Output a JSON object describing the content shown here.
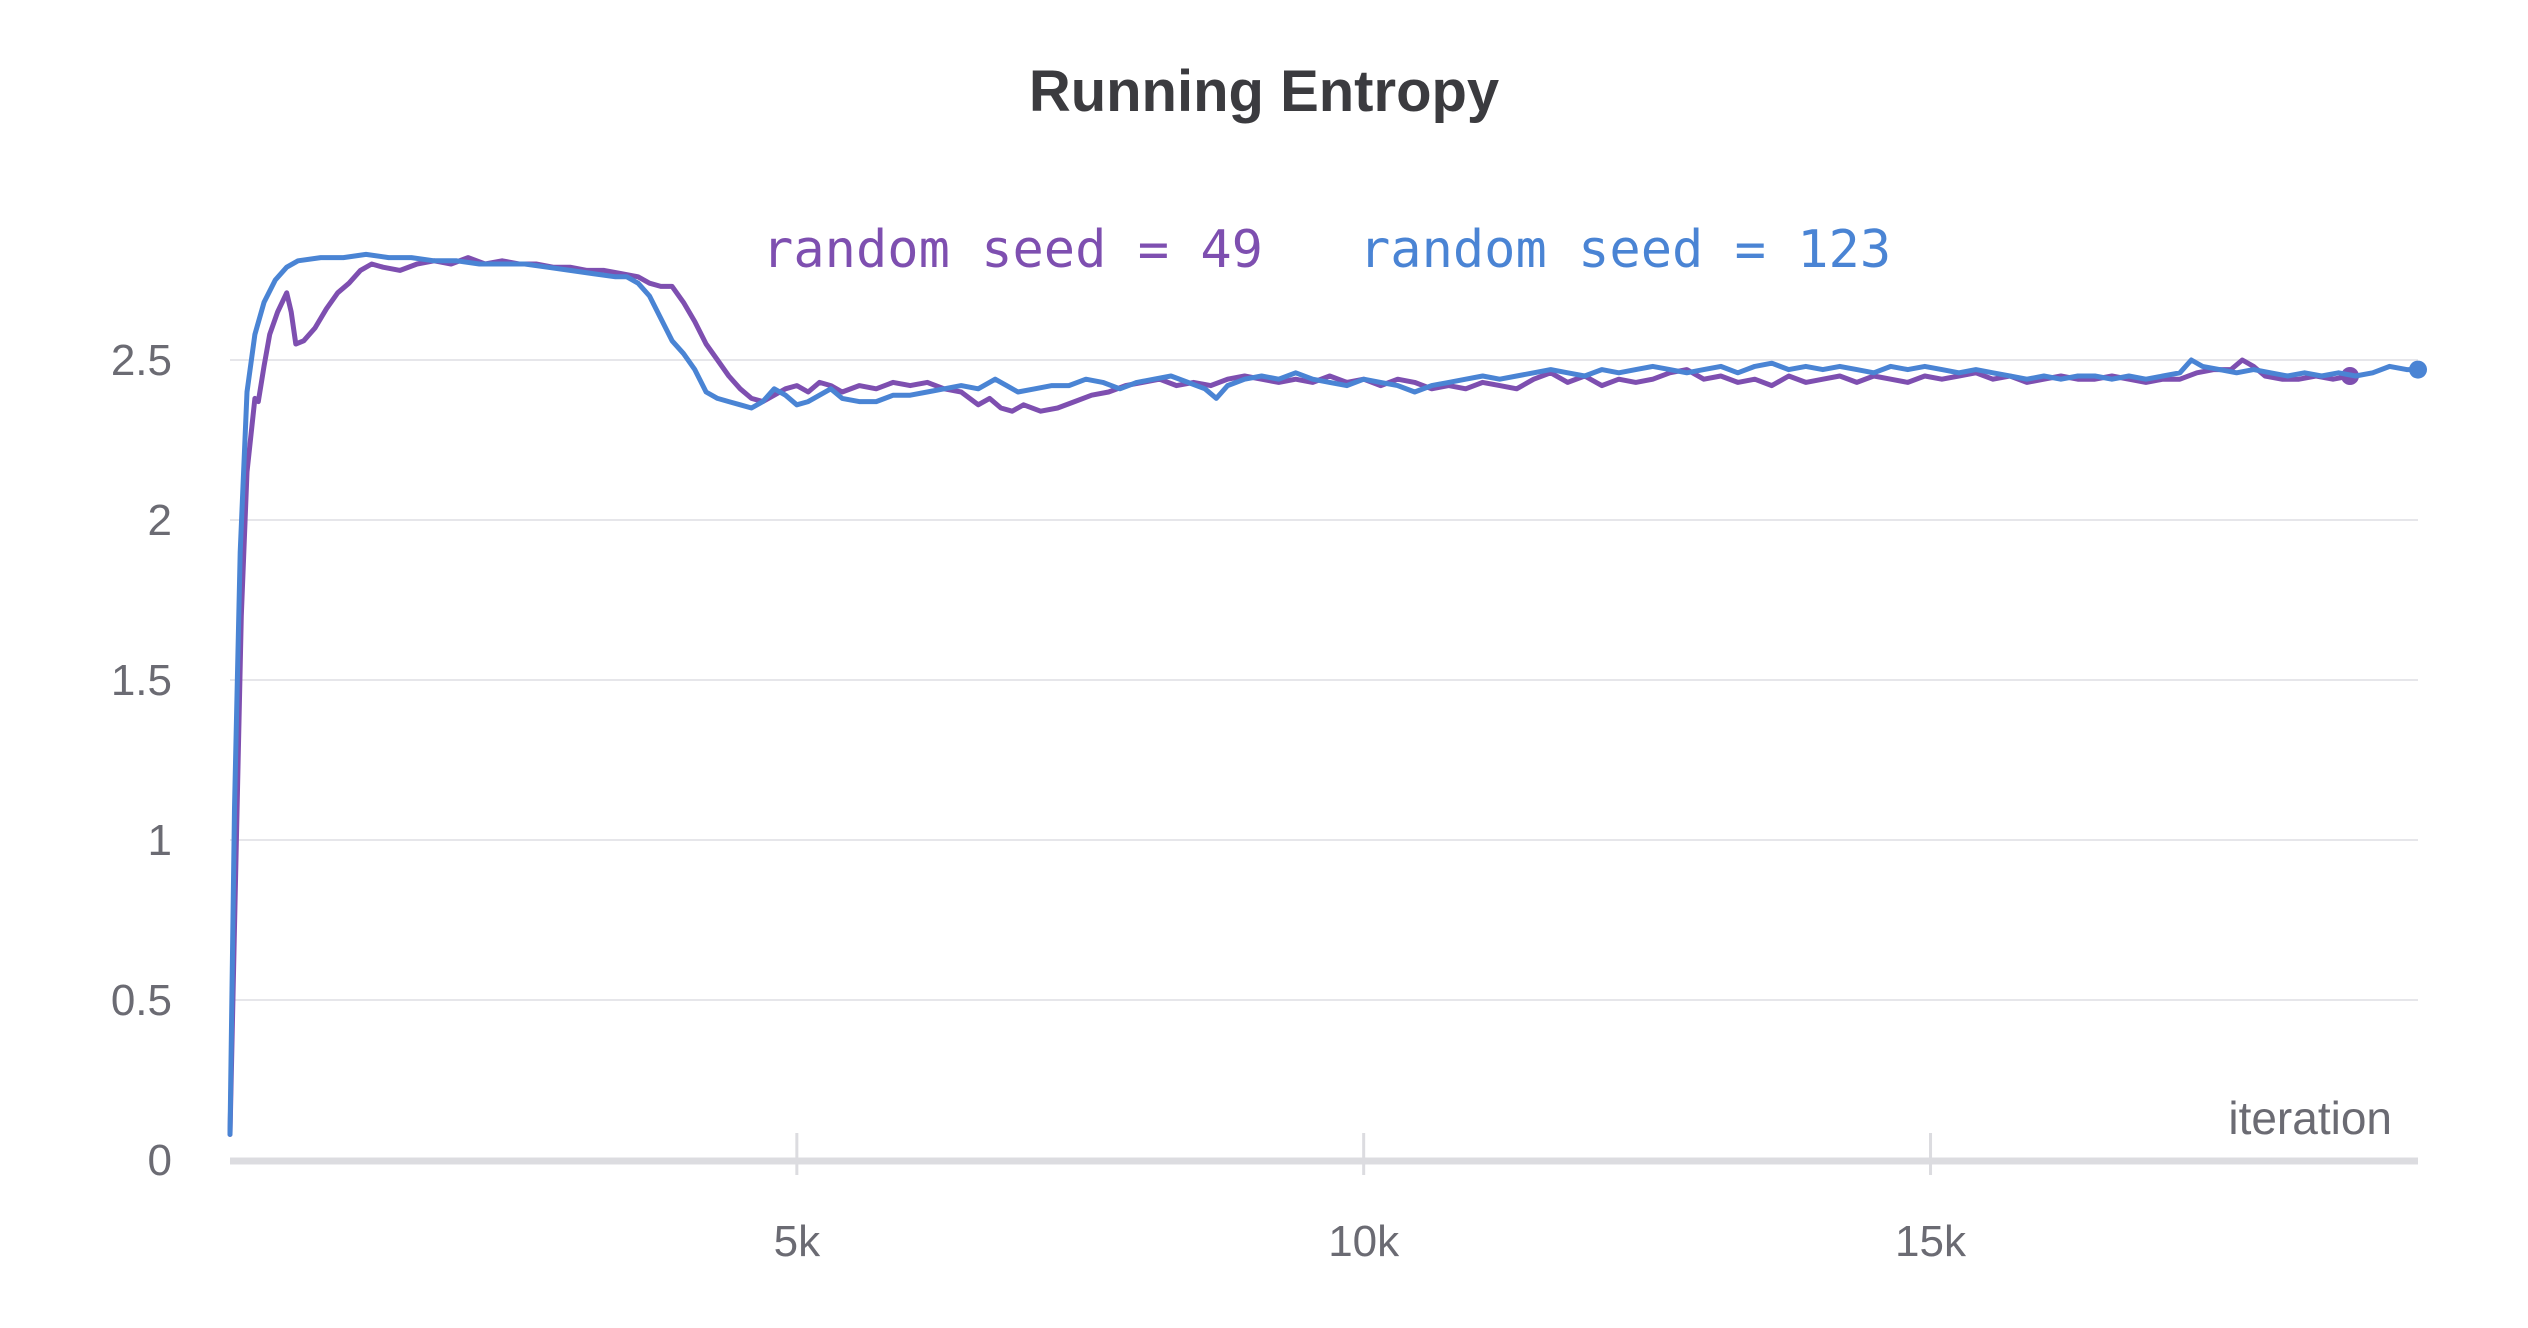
{
  "chart_data": {
    "type": "line",
    "title": "Running Entropy",
    "xlabel": "iteration",
    "ylabel": "",
    "xlim": [
      0,
      19300
    ],
    "ylim": [
      0,
      2.85
    ],
    "grid": true,
    "legend_position": "top",
    "y_ticks": [
      {
        "value": 0,
        "label": "0"
      },
      {
        "value": 0.5,
        "label": "0.5"
      },
      {
        "value": 1,
        "label": "1"
      },
      {
        "value": 1.5,
        "label": "1.5"
      },
      {
        "value": 2,
        "label": "2"
      },
      {
        "value": 2.5,
        "label": "2.5"
      }
    ],
    "x_ticks": [
      {
        "value": 5000,
        "label": "5k"
      },
      {
        "value": 10000,
        "label": "10k"
      },
      {
        "value": 15000,
        "label": "15k"
      }
    ],
    "series": [
      {
        "name": "random seed = 49",
        "color": "#7e4fb0",
        "points": [
          [
            0,
            0.08
          ],
          [
            50,
            0.9
          ],
          [
            100,
            1.7
          ],
          [
            150,
            2.15
          ],
          [
            220,
            2.38
          ],
          [
            250,
            2.37
          ],
          [
            300,
            2.48
          ],
          [
            350,
            2.58
          ],
          [
            420,
            2.65
          ],
          [
            500,
            2.71
          ],
          [
            540,
            2.65
          ],
          [
            580,
            2.55
          ],
          [
            650,
            2.56
          ],
          [
            750,
            2.6
          ],
          [
            850,
            2.66
          ],
          [
            950,
            2.71
          ],
          [
            1050,
            2.74
          ],
          [
            1150,
            2.78
          ],
          [
            1250,
            2.8
          ],
          [
            1350,
            2.79
          ],
          [
            1500,
            2.78
          ],
          [
            1650,
            2.8
          ],
          [
            1800,
            2.81
          ],
          [
            1950,
            2.8
          ],
          [
            2100,
            2.82
          ],
          [
            2250,
            2.8
          ],
          [
            2400,
            2.81
          ],
          [
            2550,
            2.8
          ],
          [
            2700,
            2.8
          ],
          [
            2850,
            2.79
          ],
          [
            3000,
            2.79
          ],
          [
            3150,
            2.78
          ],
          [
            3300,
            2.78
          ],
          [
            3450,
            2.77
          ],
          [
            3600,
            2.76
          ],
          [
            3700,
            2.74
          ],
          [
            3800,
            2.73
          ],
          [
            3900,
            2.73
          ],
          [
            4000,
            2.68
          ],
          [
            4100,
            2.62
          ],
          [
            4200,
            2.55
          ],
          [
            4300,
            2.5
          ],
          [
            4400,
            2.45
          ],
          [
            4500,
            2.41
          ],
          [
            4600,
            2.38
          ],
          [
            4700,
            2.37
          ],
          [
            4800,
            2.39
          ],
          [
            4900,
            2.41
          ],
          [
            5000,
            2.42
          ],
          [
            5100,
            2.4
          ],
          [
            5200,
            2.43
          ],
          [
            5300,
            2.42
          ],
          [
            5400,
            2.4
          ],
          [
            5550,
            2.42
          ],
          [
            5700,
            2.41
          ],
          [
            5850,
            2.43
          ],
          [
            6000,
            2.42
          ],
          [
            6150,
            2.43
          ],
          [
            6300,
            2.41
          ],
          [
            6450,
            2.4
          ],
          [
            6600,
            2.36
          ],
          [
            6700,
            2.38
          ],
          [
            6800,
            2.35
          ],
          [
            6900,
            2.34
          ],
          [
            7000,
            2.36
          ],
          [
            7150,
            2.34
          ],
          [
            7300,
            2.35
          ],
          [
            7450,
            2.37
          ],
          [
            7600,
            2.39
          ],
          [
            7750,
            2.4
          ],
          [
            7900,
            2.42
          ],
          [
            8050,
            2.43
          ],
          [
            8200,
            2.44
          ],
          [
            8350,
            2.42
          ],
          [
            8500,
            2.43
          ],
          [
            8650,
            2.42
          ],
          [
            8800,
            2.44
          ],
          [
            8950,
            2.45
          ],
          [
            9100,
            2.44
          ],
          [
            9250,
            2.43
          ],
          [
            9400,
            2.44
          ],
          [
            9550,
            2.43
          ],
          [
            9700,
            2.45
          ],
          [
            9850,
            2.43
          ],
          [
            10000,
            2.44
          ],
          [
            10150,
            2.42
          ],
          [
            10300,
            2.44
          ],
          [
            10450,
            2.43
          ],
          [
            10600,
            2.41
          ],
          [
            10750,
            2.42
          ],
          [
            10900,
            2.41
          ],
          [
            11050,
            2.43
          ],
          [
            11200,
            2.42
          ],
          [
            11350,
            2.41
          ],
          [
            11500,
            2.44
          ],
          [
            11650,
            2.46
          ],
          [
            11800,
            2.43
          ],
          [
            11950,
            2.45
          ],
          [
            12100,
            2.42
          ],
          [
            12250,
            2.44
          ],
          [
            12400,
            2.43
          ],
          [
            12550,
            2.44
          ],
          [
            12700,
            2.46
          ],
          [
            12850,
            2.47
          ],
          [
            13000,
            2.44
          ],
          [
            13150,
            2.45
          ],
          [
            13300,
            2.43
          ],
          [
            13450,
            2.44
          ],
          [
            13600,
            2.42
          ],
          [
            13750,
            2.45
          ],
          [
            13900,
            2.43
          ],
          [
            14050,
            2.44
          ],
          [
            14200,
            2.45
          ],
          [
            14350,
            2.43
          ],
          [
            14500,
            2.45
          ],
          [
            14650,
            2.44
          ],
          [
            14800,
            2.43
          ],
          [
            14950,
            2.45
          ],
          [
            15100,
            2.44
          ],
          [
            15250,
            2.45
          ],
          [
            15400,
            2.46
          ],
          [
            15550,
            2.44
          ],
          [
            15700,
            2.45
          ],
          [
            15850,
            2.43
          ],
          [
            16000,
            2.44
          ],
          [
            16150,
            2.45
          ],
          [
            16300,
            2.44
          ],
          [
            16450,
            2.44
          ],
          [
            16600,
            2.45
          ],
          [
            16750,
            2.44
          ],
          [
            16900,
            2.43
          ],
          [
            17050,
            2.44
          ],
          [
            17200,
            2.44
          ],
          [
            17350,
            2.46
          ],
          [
            17500,
            2.47
          ],
          [
            17650,
            2.47
          ],
          [
            17750,
            2.5
          ],
          [
            17850,
            2.48
          ],
          [
            17950,
            2.45
          ],
          [
            18100,
            2.44
          ],
          [
            18250,
            2.44
          ],
          [
            18400,
            2.45
          ],
          [
            18550,
            2.44
          ],
          [
            18700,
            2.45
          ]
        ]
      },
      {
        "name": "random seed = 123",
        "color": "#4a84d4",
        "points": [
          [
            0,
            0.08
          ],
          [
            40,
            1.1
          ],
          [
            90,
            1.9
          ],
          [
            150,
            2.4
          ],
          [
            220,
            2.58
          ],
          [
            300,
            2.68
          ],
          [
            400,
            2.75
          ],
          [
            500,
            2.79
          ],
          [
            600,
            2.81
          ],
          [
            800,
            2.82
          ],
          [
            1000,
            2.82
          ],
          [
            1200,
            2.83
          ],
          [
            1400,
            2.82
          ],
          [
            1600,
            2.82
          ],
          [
            1800,
            2.81
          ],
          [
            2000,
            2.81
          ],
          [
            2200,
            2.8
          ],
          [
            2400,
            2.8
          ],
          [
            2600,
            2.8
          ],
          [
            2800,
            2.79
          ],
          [
            3000,
            2.78
          ],
          [
            3200,
            2.77
          ],
          [
            3400,
            2.76
          ],
          [
            3500,
            2.76
          ],
          [
            3600,
            2.74
          ],
          [
            3700,
            2.7
          ],
          [
            3800,
            2.63
          ],
          [
            3900,
            2.56
          ],
          [
            4000,
            2.52
          ],
          [
            4100,
            2.47
          ],
          [
            4200,
            2.4
          ],
          [
            4300,
            2.38
          ],
          [
            4400,
            2.37
          ],
          [
            4500,
            2.36
          ],
          [
            4600,
            2.35
          ],
          [
            4700,
            2.37
          ],
          [
            4800,
            2.41
          ],
          [
            4900,
            2.39
          ],
          [
            5000,
            2.36
          ],
          [
            5100,
            2.37
          ],
          [
            5200,
            2.39
          ],
          [
            5300,
            2.41
          ],
          [
            5400,
            2.38
          ],
          [
            5550,
            2.37
          ],
          [
            5700,
            2.37
          ],
          [
            5850,
            2.39
          ],
          [
            6000,
            2.39
          ],
          [
            6150,
            2.4
          ],
          [
            6300,
            2.41
          ],
          [
            6450,
            2.42
          ],
          [
            6600,
            2.41
          ],
          [
            6750,
            2.44
          ],
          [
            6850,
            2.42
          ],
          [
            6950,
            2.4
          ],
          [
            7100,
            2.41
          ],
          [
            7250,
            2.42
          ],
          [
            7400,
            2.42
          ],
          [
            7550,
            2.44
          ],
          [
            7700,
            2.43
          ],
          [
            7850,
            2.41
          ],
          [
            8000,
            2.43
          ],
          [
            8150,
            2.44
          ],
          [
            8300,
            2.45
          ],
          [
            8450,
            2.43
          ],
          [
            8600,
            2.41
          ],
          [
            8700,
            2.38
          ],
          [
            8800,
            2.42
          ],
          [
            8950,
            2.44
          ],
          [
            9100,
            2.45
          ],
          [
            9250,
            2.44
          ],
          [
            9400,
            2.46
          ],
          [
            9550,
            2.44
          ],
          [
            9700,
            2.43
          ],
          [
            9850,
            2.42
          ],
          [
            10000,
            2.44
          ],
          [
            10150,
            2.43
          ],
          [
            10300,
            2.42
          ],
          [
            10450,
            2.4
          ],
          [
            10600,
            2.42
          ],
          [
            10750,
            2.43
          ],
          [
            10900,
            2.44
          ],
          [
            11050,
            2.45
          ],
          [
            11200,
            2.44
          ],
          [
            11350,
            2.45
          ],
          [
            11500,
            2.46
          ],
          [
            11650,
            2.47
          ],
          [
            11800,
            2.46
          ],
          [
            11950,
            2.45
          ],
          [
            12100,
            2.47
          ],
          [
            12250,
            2.46
          ],
          [
            12400,
            2.47
          ],
          [
            12550,
            2.48
          ],
          [
            12700,
            2.47
          ],
          [
            12850,
            2.46
          ],
          [
            13000,
            2.47
          ],
          [
            13150,
            2.48
          ],
          [
            13300,
            2.46
          ],
          [
            13450,
            2.48
          ],
          [
            13600,
            2.49
          ],
          [
            13750,
            2.47
          ],
          [
            13900,
            2.48
          ],
          [
            14050,
            2.47
          ],
          [
            14200,
            2.48
          ],
          [
            14350,
            2.47
          ],
          [
            14500,
            2.46
          ],
          [
            14650,
            2.48
          ],
          [
            14800,
            2.47
          ],
          [
            14950,
            2.48
          ],
          [
            15100,
            2.47
          ],
          [
            15250,
            2.46
          ],
          [
            15400,
            2.47
          ],
          [
            15550,
            2.46
          ],
          [
            15700,
            2.45
          ],
          [
            15850,
            2.44
          ],
          [
            16000,
            2.45
          ],
          [
            16150,
            2.44
          ],
          [
            16300,
            2.45
          ],
          [
            16450,
            2.45
          ],
          [
            16600,
            2.44
          ],
          [
            16750,
            2.45
          ],
          [
            16900,
            2.44
          ],
          [
            17050,
            2.45
          ],
          [
            17200,
            2.46
          ],
          [
            17300,
            2.5
          ],
          [
            17400,
            2.48
          ],
          [
            17550,
            2.47
          ],
          [
            17700,
            2.46
          ],
          [
            17850,
            2.47
          ],
          [
            18000,
            2.46
          ],
          [
            18150,
            2.45
          ],
          [
            18300,
            2.46
          ],
          [
            18450,
            2.45
          ],
          [
            18600,
            2.46
          ],
          [
            18750,
            2.45
          ],
          [
            18900,
            2.46
          ],
          [
            19050,
            2.48
          ],
          [
            19200,
            2.47
          ],
          [
            19300,
            2.47
          ]
        ]
      }
    ]
  }
}
